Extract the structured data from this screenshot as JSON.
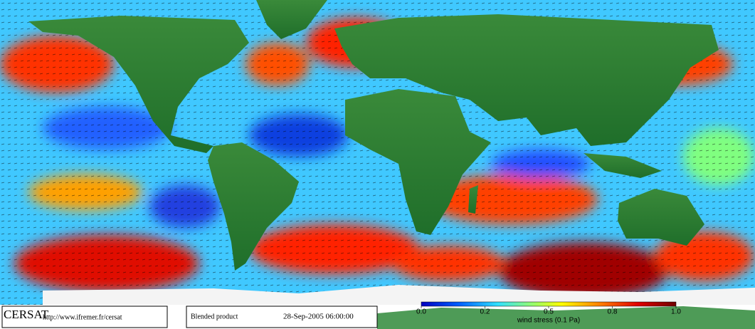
{
  "footer": {
    "logo": "CERSAT",
    "url": "http://www.ifremer.fr/cersat",
    "product": "Blended product",
    "timestamp": "28-Sep-2005 06:00:00"
  },
  "colorbar": {
    "ticks": [
      "0.0",
      "0.2",
      "0.5",
      "0.8",
      "1.0"
    ],
    "label": "wind stress (0.1 Pa)"
  }
}
